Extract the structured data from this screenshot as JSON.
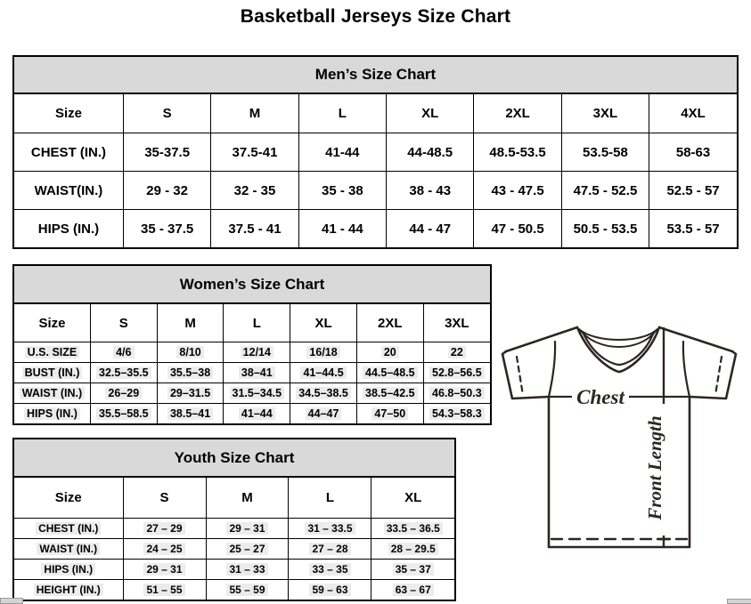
{
  "page": {
    "title": "Basketball Jerseys Size Chart"
  },
  "mens": {
    "title": "Men’s Size Chart",
    "columns": [
      "Size",
      "S",
      "M",
      "L",
      "XL",
      "2XL",
      "3XL",
      "4XL"
    ],
    "rows": [
      {
        "label": "CHEST (IN.)",
        "values": [
          "35-37.5",
          "37.5-41",
          "41-44",
          "44-48.5",
          "48.5-53.5",
          "53.5-58",
          "58-63"
        ]
      },
      {
        "label": "WAIST(IN.)",
        "values": [
          "29 - 32",
          "32 - 35",
          "35 - 38",
          "38 - 43",
          "43 - 47.5",
          "47.5 - 52.5",
          "52.5 - 57"
        ]
      },
      {
        "label": "HIPS (IN.)",
        "values": [
          "35 - 37.5",
          "37.5 - 41",
          "41 - 44",
          "44 - 47",
          "47 - 50.5",
          "50.5 - 53.5",
          "53.5 - 57"
        ]
      }
    ]
  },
  "womens": {
    "title": "Women’s Size Chart",
    "columns": [
      "Size",
      "S",
      "M",
      "L",
      "XL",
      "2XL",
      "3XL"
    ],
    "rows": [
      {
        "label": "U.S. SIZE",
        "values": [
          "4/6",
          "8/10",
          "12/14",
          "16/18",
          "20",
          "22"
        ]
      },
      {
        "label": "BUST (IN.)",
        "values": [
          "32.5–35.5",
          "35.5–38",
          "38–41",
          "41–44.5",
          "44.5–48.5",
          "52.8–56.5"
        ]
      },
      {
        "label": "WAIST (IN.)",
        "values": [
          "26–29",
          "29–31.5",
          "31.5–34.5",
          "34.5–38.5",
          "38.5–42.5",
          "46.8–50.3"
        ]
      },
      {
        "label": "HIPS (IN.)",
        "values": [
          "35.5–58.5",
          "38.5–41",
          "41–44",
          "44–47",
          "47–50",
          "54.3–58.3"
        ]
      }
    ]
  },
  "youth": {
    "title": "Youth Size Chart",
    "columns": [
      "Size",
      "S",
      "M",
      "L",
      "XL"
    ],
    "rows": [
      {
        "label": "CHEST (IN.)",
        "values": [
          "27 – 29",
          "29 – 31",
          "31 – 33.5",
          "33.5 – 36.5"
        ]
      },
      {
        "label": "WAIST (IN.)",
        "values": [
          "24 – 25",
          "25 – 27",
          "27 – 28",
          "28 – 29.5"
        ]
      },
      {
        "label": "HIPS (IN.)",
        "values": [
          "29 – 31",
          "31 – 33",
          "33 – 35",
          "35 – 37"
        ]
      },
      {
        "label": "HEIGHT (IN.)",
        "values": [
          "51 – 55",
          "55 – 59",
          "59 – 63",
          "63 – 67"
        ]
      }
    ]
  },
  "diagram": {
    "chest_label": "Chest",
    "front_length_label": "Front Length"
  },
  "colors": {
    "header_bg": "#d9d9d9",
    "table_border": "#000000",
    "diagram_line": "#2d2522"
  }
}
